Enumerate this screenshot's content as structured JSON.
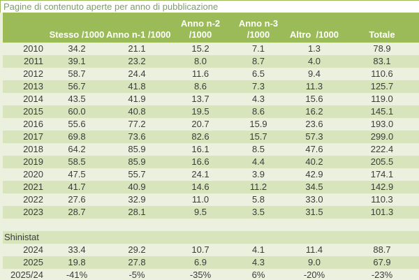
{
  "title": "Pagine di contenuto aperte per anno di pubblicazione",
  "colors": {
    "header_bg": "#9BBB59",
    "header_text": "#FFFFFF",
    "row_light": "#EBF1DE",
    "row_green": "#D7E4BC",
    "title_text": "#7F9C6A",
    "data_text": "#3C3C3C"
  },
  "table": {
    "columns": [
      {
        "key": "year",
        "line1": "",
        "line2": ""
      },
      {
        "key": "stesso",
        "line1": "",
        "line2": "Stesso /1000"
      },
      {
        "key": "anno_n1",
        "line1": "",
        "line2": "Anno n-1 /1000"
      },
      {
        "key": "anno_n2",
        "line1": "Anno n-2",
        "line2": "/1000"
      },
      {
        "key": "anno_n3",
        "line1": "Anno n-3",
        "line2": "/1000"
      },
      {
        "key": "altro",
        "line1": "",
        "line2": "Altro  /1000"
      },
      {
        "key": "totale",
        "line1": "",
        "line2": "Totale"
      }
    ],
    "rows": [
      {
        "type": "data",
        "year": "2010",
        "values": [
          "34.2",
          "21.1",
          "15.2",
          "7.1",
          "1.3",
          "78.9"
        ]
      },
      {
        "type": "data",
        "year": "2011",
        "values": [
          "39.1",
          "23.2",
          "8.0",
          "8.7",
          "4.0",
          "83.1"
        ]
      },
      {
        "type": "data",
        "year": "2012",
        "values": [
          "58.7",
          "24.4",
          "11.6",
          "6.5",
          "9.4",
          "110.6"
        ]
      },
      {
        "type": "data",
        "year": "2013",
        "values": [
          "56.7",
          "41.8",
          "8.6",
          "7.3",
          "11.3",
          "125.7"
        ]
      },
      {
        "type": "data",
        "year": "2014",
        "values": [
          "43.5",
          "41.9",
          "13.7",
          "4.3",
          "15.6",
          "119.0"
        ]
      },
      {
        "type": "data",
        "year": "2015",
        "values": [
          "60.0",
          "40.8",
          "19.5",
          "8.6",
          "16.2",
          "145.1"
        ]
      },
      {
        "type": "data",
        "year": "2016",
        "values": [
          "55.6",
          "77.2",
          "20.7",
          "15.9",
          "23.6",
          "193.0"
        ]
      },
      {
        "type": "data",
        "year": "2017",
        "values": [
          "69.8",
          "73.6",
          "82.6",
          "15.7",
          "57.3",
          "299.0"
        ]
      },
      {
        "type": "data",
        "year": "2018",
        "values": [
          "64.2",
          "85.9",
          "16.1",
          "8.5",
          "47.6",
          "222.4"
        ]
      },
      {
        "type": "data",
        "year": "2019",
        "values": [
          "58.5",
          "85.9",
          "16.6",
          "4.4",
          "40.2",
          "205.5"
        ]
      },
      {
        "type": "data",
        "year": "2020",
        "values": [
          "47.5",
          "55.7",
          "24.1",
          "3.9",
          "42.9",
          "174.1"
        ]
      },
      {
        "type": "data",
        "year": "2021",
        "values": [
          "41.7",
          "40.9",
          "14.6",
          "11.2",
          "34.5",
          "142.9"
        ]
      },
      {
        "type": "data",
        "year": "2022",
        "values": [
          "27.6",
          "32.9",
          "11.0",
          "5.8",
          "33.0",
          "110.3"
        ]
      },
      {
        "type": "data",
        "year": "2023",
        "values": [
          "28.7",
          "28.1",
          "9.5",
          "3.5",
          "31.5",
          "101.3"
        ]
      },
      {
        "type": "spacer"
      },
      {
        "type": "label",
        "label": "Shinistat"
      },
      {
        "type": "data",
        "year": "2024",
        "values": [
          "33.4",
          "29.2",
          "10.7",
          "4.1",
          "11.4",
          "88.7"
        ]
      },
      {
        "type": "data",
        "year": "2025",
        "values": [
          "19.8",
          "27.8",
          "6.9",
          "4.3",
          "9.0",
          "67.9"
        ]
      },
      {
        "type": "data",
        "year": "2025/24",
        "values": [
          "-41%",
          "-5%",
          "-35%",
          "6%",
          "-20%",
          "-23%"
        ]
      }
    ]
  }
}
